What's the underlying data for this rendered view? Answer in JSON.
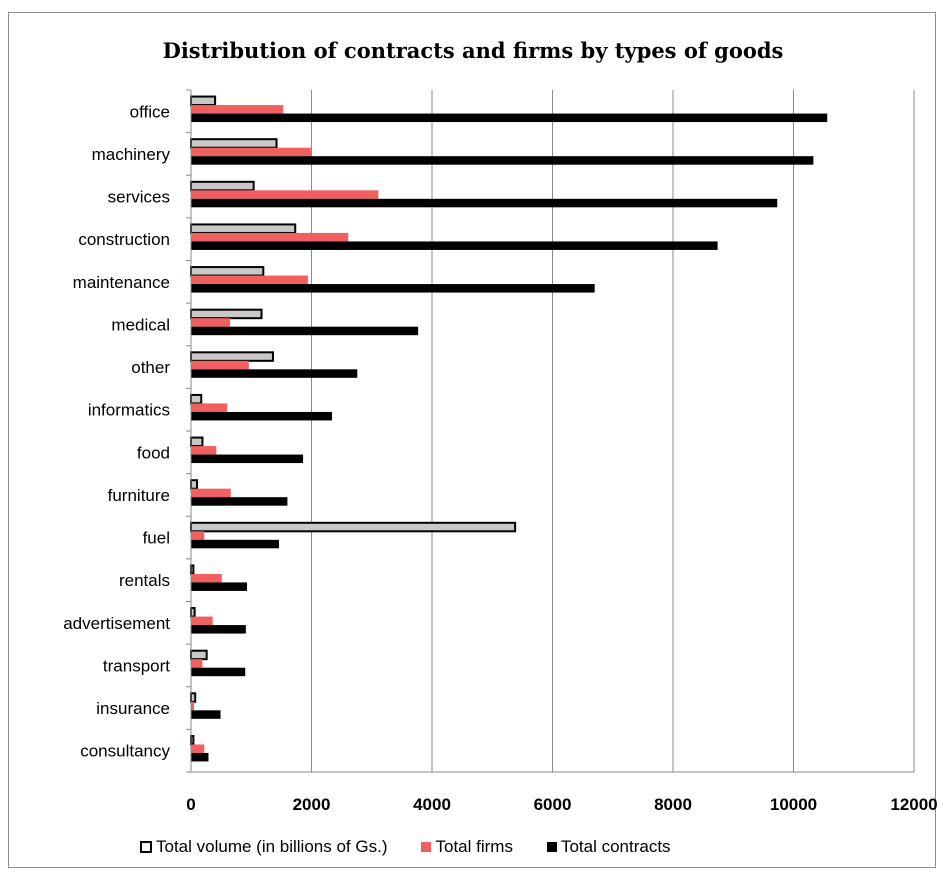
{
  "chart_data": {
    "type": "bar",
    "orientation": "horizontal",
    "title": "Distribution of contracts and firms by types of goods",
    "categories": [
      "office",
      "machinery",
      "services",
      "construction",
      "maintenance",
      "medical",
      "other",
      "informatics",
      "food",
      "furniture",
      "fuel",
      "rentals",
      "advertisement",
      "transport",
      "insurance",
      "consultancy"
    ],
    "series": [
      {
        "name": "Total volume (in billions of Gs.)",
        "color": "#c8c8c8",
        "stroke": "#000000",
        "values": [
          400,
          1420,
          1040,
          1730,
          1200,
          1170,
          1360,
          170,
          190,
          100,
          5380,
          40,
          60,
          260,
          70,
          40
        ]
      },
      {
        "name": "Total firms",
        "color": "#f06060",
        "values": [
          1530,
          1990,
          3110,
          2610,
          1940,
          650,
          960,
          600,
          420,
          660,
          220,
          510,
          360,
          190,
          50,
          220
        ]
      },
      {
        "name": "Total contracts",
        "color": "#000000",
        "values": [
          10560,
          10330,
          9730,
          8740,
          6700,
          3770,
          2760,
          2340,
          1860,
          1600,
          1460,
          930,
          910,
          900,
          490,
          290
        ]
      }
    ],
    "xlim": [
      0,
      12000
    ],
    "xticks": [
      "0",
      "2000",
      "4000",
      "6000",
      "8000",
      "10000",
      "12000"
    ],
    "grid": true,
    "legend_position": "bottom"
  }
}
